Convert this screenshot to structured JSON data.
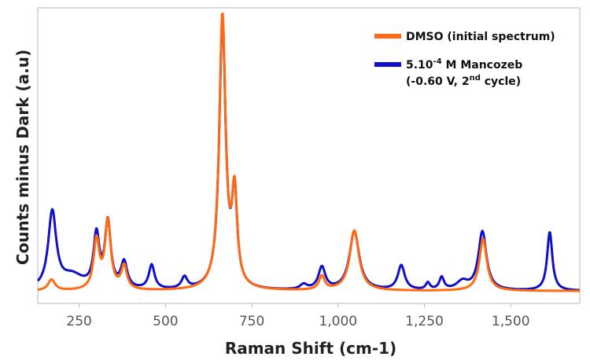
{
  "chart_data": {
    "type": "line",
    "xlabel": "Raman Shift (cm-1)",
    "ylabel": "Counts minus Dark (a.u)",
    "xlim": [
      130,
      1700
    ],
    "ylim": [
      0,
      1000
    ],
    "x_ticks": [
      250,
      500,
      750,
      1000,
      1250,
      1500
    ],
    "x_tick_labels": [
      "250",
      "500",
      "750",
      "1,000",
      "1,250",
      "1,500"
    ],
    "y_ticks_shown": false,
    "grid": false,
    "legend_position": "top-right",
    "legend": {
      "dmso": "DMSO (initial spectrum)",
      "manco_line1_pre": "5.10",
      "manco_line1_sup": "-4",
      "manco_line1_post": " M Mancozeb",
      "manco_line2_pre": "(-0.60 V, 2",
      "manco_line2_sup": "nd",
      "manco_line2_post": " cycle)"
    },
    "series": [
      {
        "name": "DMSO (initial spectrum)",
        "color": "#FF6A13",
        "baseline": 8,
        "peaks": [
          [
            170,
            40,
            12
          ],
          [
            300,
            180,
            10
          ],
          [
            333,
            250,
            10
          ],
          [
            380,
            85,
            10
          ],
          [
            665,
            1000,
            11
          ],
          [
            700,
            330,
            9
          ],
          [
            953,
            50,
            10
          ],
          [
            1047,
            220,
            16
          ],
          [
            1420,
            190,
            13
          ]
        ]
      },
      {
        "name": "5.10-4 M Mancozeb (-0.60 V, 2nd cycle)",
        "color": "#1010C8",
        "baseline": 8,
        "peaks": [
          [
            172,
            280,
            14
          ],
          [
            230,
            50,
            40
          ],
          [
            300,
            190,
            10
          ],
          [
            333,
            240,
            10
          ],
          [
            380,
            95,
            11
          ],
          [
            460,
            88,
            10
          ],
          [
            555,
            42,
            10
          ],
          [
            665,
            980,
            11
          ],
          [
            700,
            330,
            9
          ],
          [
            900,
            18,
            12
          ],
          [
            953,
            82,
            12
          ],
          [
            1047,
            215,
            17
          ],
          [
            1183,
            90,
            12
          ],
          [
            1260,
            25,
            7
          ],
          [
            1300,
            45,
            8
          ],
          [
            1360,
            30,
            20
          ],
          [
            1418,
            215,
            14
          ],
          [
            1613,
            215,
            9
          ]
        ]
      }
    ]
  }
}
